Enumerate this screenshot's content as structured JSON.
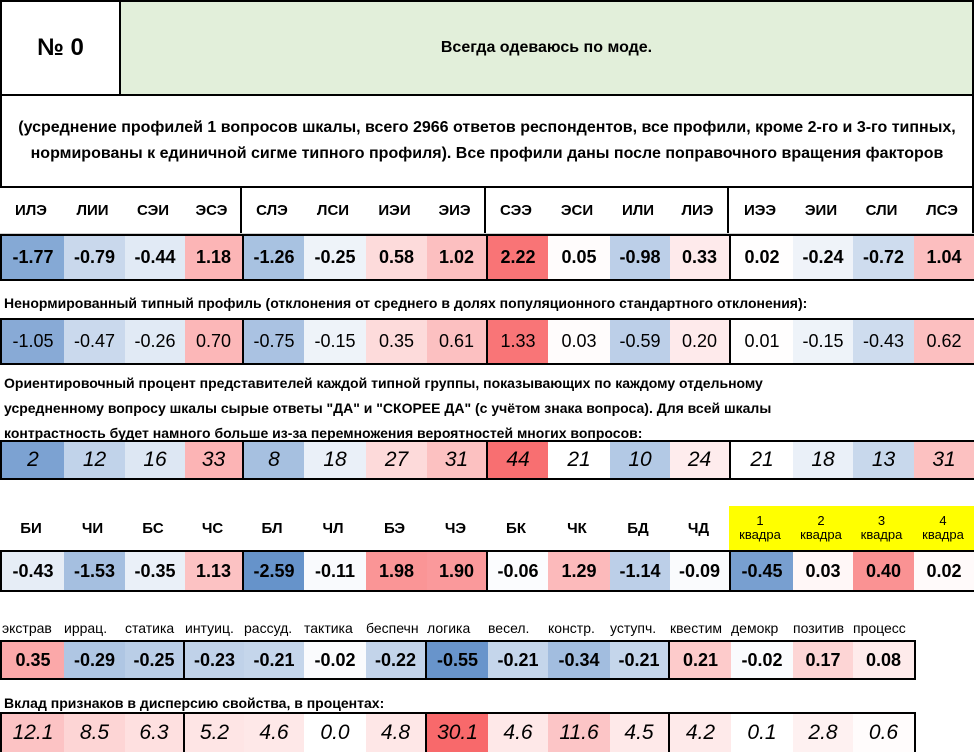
{
  "title": {
    "number": "№ 0",
    "statement": "Всегда одеваюсь по моде."
  },
  "description": "(усреднение профилей 1 вопросов шкалы, всего 2966 ответов респондентов, все профили, кроме 2-го и 3-го типных, нормированы к единичной сигме типного профиля). Все профили даны после поправочного вращения факторов",
  "types": [
    "ИЛЭ",
    "ЛИИ",
    "СЭИ",
    "ЭСЭ",
    "СЛЭ",
    "ЛСИ",
    "ИЭИ",
    "ЭИЭ",
    "СЭЭ",
    "ЭСИ",
    "ИЛИ",
    "ЛИЭ",
    "ИЭЭ",
    "ЭИИ",
    "СЛИ",
    "ЛСЭ"
  ],
  "normalized_profile": [
    "-1.77",
    "-0.79",
    "-0.44",
    "1.18",
    "-1.26",
    "-0.25",
    "0.58",
    "1.02",
    "2.22",
    "0.05",
    "-0.98",
    "0.33",
    "0.02",
    "-0.24",
    "-0.72",
    "1.04"
  ],
  "raw_profile_note": "Ненормированный типный профиль (отклонения от среднего  в долях популяционного стандартного отклонения):",
  "raw_profile": [
    "-1.05",
    "-0.47",
    "-0.26",
    "0.70",
    "-0.75",
    "-0.15",
    "0.35",
    "0.61",
    "1.33",
    "0.03",
    "-0.59",
    "0.20",
    "0.01",
    "-0.15",
    "-0.43",
    "0.62"
  ],
  "percent_note_1": "Ориентировочный процент представителей каждой типной группы, показывающих по каждому отдельному",
  "percent_note_2": "усредненному вопросу шкалы сырые ответы \"ДА\" и \"СКОРЕЕ ДА\" (с учётом знака вопроса). Для всей шкалы",
  "percent_note_3": "контрастность будет намного больше из-за перемножения вероятностей многих вопросов:",
  "percent": [
    "2",
    "12",
    "16",
    "33",
    "8",
    "18",
    "27",
    "31",
    "44",
    "21",
    "10",
    "24",
    "21",
    "18",
    "13",
    "31"
  ],
  "pairs": [
    "БИ",
    "ЧИ",
    "БС",
    "ЧС",
    "БЛ",
    "ЧЛ",
    "БЭ",
    "ЧЭ",
    "БК",
    "ЧК",
    "БД",
    "ЧД"
  ],
  "quadras": [
    {
      "n": "1",
      "w": "квадра"
    },
    {
      "n": "2",
      "w": "квадра"
    },
    {
      "n": "3",
      "w": "квадра"
    },
    {
      "n": "4",
      "w": "квадра"
    }
  ],
  "pair_values": [
    "-0.43",
    "-1.53",
    "-0.35",
    "1.13",
    "-2.59",
    "-0.11",
    "1.98",
    "1.90",
    "-0.06",
    "1.29",
    "-1.14",
    "-0.09"
  ],
  "quadra_values": [
    "-0.45",
    "0.03",
    "0.40",
    "0.02"
  ],
  "factors": [
    "экстрав",
    "иррац.",
    "статика",
    "интуиц.",
    "рассуд.",
    "тактика",
    "беспечн",
    "логика",
    "весел.",
    "констр.",
    "уступч.",
    "квестим",
    "демокр",
    "позитив",
    "процесс"
  ],
  "factor_values": [
    "0.35",
    "-0.29",
    "-0.25",
    "-0.23",
    "-0.21",
    "-0.02",
    "-0.22",
    "-0.55",
    "-0.21",
    "-0.34",
    "-0.21",
    "0.21",
    "-0.02",
    "0.17",
    "0.08"
  ],
  "variance_note": "Вклад признаков в дисперсию свойства, в процентах:",
  "variance": [
    "12.1",
    "8.5",
    "6.3",
    "5.2",
    "4.6",
    "0.0",
    "4.8",
    "30.1",
    "4.6",
    "11.6",
    "4.5",
    "4.2",
    "0.1",
    "2.8",
    "0.6"
  ],
  "colors": {
    "header_bg": "#e2efda",
    "quadra_bg": "#ffff00",
    "positive": "#f8696b",
    "negative": "#5a8ac6"
  }
}
